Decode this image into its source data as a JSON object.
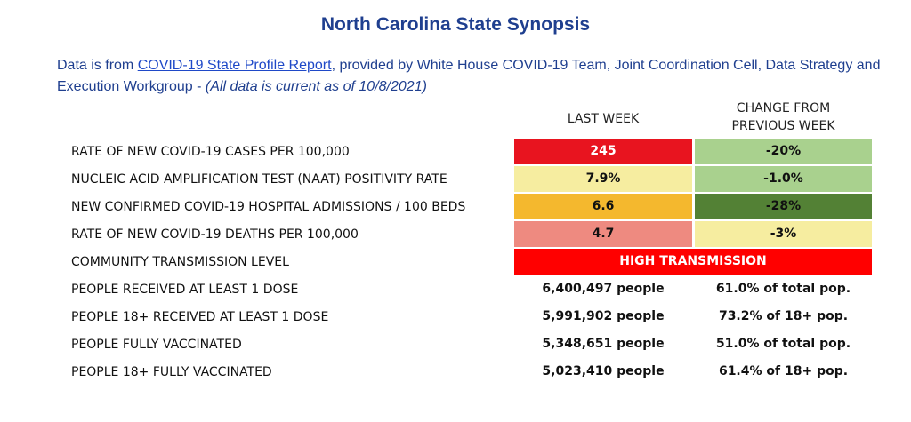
{
  "title": "North Carolina State Synopsis",
  "intro": {
    "prefix": "Data is from ",
    "link": "COVID-19 State Profile Report",
    "middle": ", provided by White House COVID-19 Team, Joint Coordination Cell, Data Strategy and Execution Workgroup - ",
    "note": "(All data is current as of 10/8/2021)"
  },
  "columns": {
    "last_week": "LAST WEEK",
    "change_line1": "CHANGE FROM",
    "change_line2": "PREVIOUS WEEK"
  },
  "rows": [
    {
      "label": "RATE OF NEW COVID-19 CASES PER 100,000",
      "last": "245",
      "change": "-20%",
      "last_color": "#e8141f",
      "last_text_color": "#ffffff",
      "change_color": "#a9d18e"
    },
    {
      "label": "NUCLEIC ACID AMPLIFICATION TEST (NAAT) POSITIVITY RATE",
      "last": "7.9%",
      "change": "-1.0%",
      "last_color": "#f6eda0",
      "last_text_color": "#111111",
      "change_color": "#a9d18e"
    },
    {
      "label": "NEW CONFIRMED COVID-19 HOSPITAL ADMISSIONS / 100 BEDS",
      "last": "6.6",
      "change": "-28%",
      "last_color": "#f4b82e",
      "last_text_color": "#111111",
      "change_color": "#538135"
    },
    {
      "label": "RATE OF NEW COVID-19 DEATHS PER 100,000",
      "last": "4.7",
      "change": "-3%",
      "last_color": "#ee8a80",
      "last_text_color": "#111111",
      "change_color": "#f6eda0"
    },
    {
      "label": "COMMUNITY TRANSMISSION LEVEL",
      "level": "HIGH TRANSMISSION",
      "level_color": "#ff0000"
    },
    {
      "label": "PEOPLE RECEIVED AT LEAST 1 DOSE",
      "last": "6,400,497 people",
      "change": "61.0% of total pop."
    },
    {
      "label": "PEOPLE 18+ RECEIVED AT LEAST 1 DOSE",
      "last": "5,991,902 people",
      "change": "73.2% of 18+ pop."
    },
    {
      "label": "PEOPLE FULLY VACCINATED",
      "last": "5,348,651 people",
      "change": "51.0% of total pop."
    },
    {
      "label": "PEOPLE 18+ FULLY VACCINATED",
      "last": "5,023,410 people",
      "change": "61.4% of 18+ pop."
    }
  ]
}
